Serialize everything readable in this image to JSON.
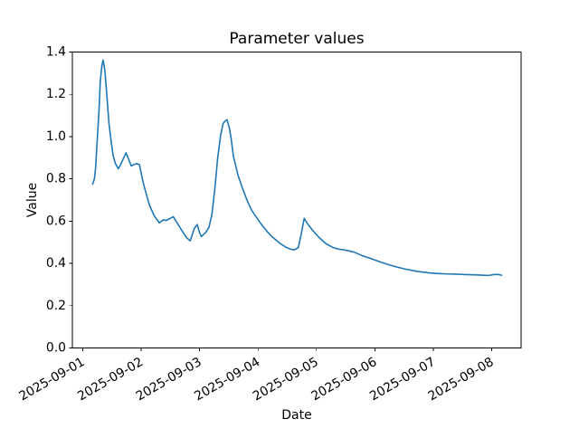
{
  "chart_data": {
    "type": "line",
    "title": "Parameter values",
    "xlabel": "Date",
    "ylabel": "Value",
    "legend": "none",
    "grid": false,
    "background_color": "#ffffff",
    "line_color": "#1f77b4",
    "frame_color": "#000000",
    "ylim": [
      0.0,
      1.4
    ],
    "ytick_values": [
      0.0,
      0.2,
      0.4,
      0.6,
      0.8,
      1.0,
      1.2,
      1.4
    ],
    "ytick_labels": [
      "0.0",
      "0.2",
      "0.4",
      "0.6",
      "0.8",
      "1.0",
      "1.2",
      "1.4"
    ],
    "x_unit": "days since 2025-09-01",
    "xlim_days": [
      -0.177,
      7.502
    ],
    "xtick_days": [
      0,
      1,
      2,
      3,
      4,
      5,
      6,
      7
    ],
    "xtick_labels": [
      "2025-09-01",
      "2025-09-02",
      "2025-09-03",
      "2025-09-04",
      "2025-09-05",
      "2025-09-06",
      "2025-09-07",
      "2025-09-08"
    ],
    "points_day_value": [
      [
        0.17,
        0.775
      ],
      [
        0.2,
        0.8
      ],
      [
        0.22,
        0.85
      ],
      [
        0.25,
        0.99
      ],
      [
        0.28,
        1.13
      ],
      [
        0.3,
        1.26
      ],
      [
        0.33,
        1.34
      ],
      [
        0.35,
        1.362
      ],
      [
        0.38,
        1.31
      ],
      [
        0.42,
        1.17
      ],
      [
        0.45,
        1.06
      ],
      [
        0.49,
        0.97
      ],
      [
        0.52,
        0.91
      ],
      [
        0.56,
        0.872
      ],
      [
        0.61,
        0.848
      ],
      [
        0.67,
        0.88
      ],
      [
        0.74,
        0.923
      ],
      [
        0.79,
        0.89
      ],
      [
        0.83,
        0.861
      ],
      [
        0.88,
        0.868
      ],
      [
        0.92,
        0.872
      ],
      [
        0.97,
        0.868
      ],
      [
        1.02,
        0.8
      ],
      [
        1.06,
        0.756
      ],
      [
        1.14,
        0.677
      ],
      [
        1.22,
        0.627
      ],
      [
        1.31,
        0.592
      ],
      [
        1.38,
        0.606
      ],
      [
        1.43,
        0.603
      ],
      [
        1.49,
        0.612
      ],
      [
        1.55,
        0.621
      ],
      [
        1.63,
        0.585
      ],
      [
        1.71,
        0.55
      ],
      [
        1.78,
        0.521
      ],
      [
        1.84,
        0.507
      ],
      [
        1.91,
        0.565
      ],
      [
        1.96,
        0.584
      ],
      [
        2.0,
        0.545
      ],
      [
        2.03,
        0.527
      ],
      [
        2.1,
        0.545
      ],
      [
        2.16,
        0.57
      ],
      [
        2.21,
        0.63
      ],
      [
        2.26,
        0.75
      ],
      [
        2.31,
        0.9
      ],
      [
        2.36,
        1.005
      ],
      [
        2.4,
        1.06
      ],
      [
        2.43,
        1.072
      ],
      [
        2.47,
        1.08
      ],
      [
        2.51,
        1.04
      ],
      [
        2.54,
        0.99
      ],
      [
        2.58,
        0.905
      ],
      [
        2.66,
        0.815
      ],
      [
        2.74,
        0.751
      ],
      [
        2.82,
        0.694
      ],
      [
        2.89,
        0.652
      ],
      [
        2.97,
        0.619
      ],
      [
        3.07,
        0.58
      ],
      [
        3.16,
        0.55
      ],
      [
        3.23,
        0.529
      ],
      [
        3.31,
        0.51
      ],
      [
        3.38,
        0.494
      ],
      [
        3.47,
        0.478
      ],
      [
        3.55,
        0.468
      ],
      [
        3.62,
        0.464
      ],
      [
        3.69,
        0.475
      ],
      [
        3.74,
        0.54
      ],
      [
        3.79,
        0.613
      ],
      [
        3.84,
        0.59
      ],
      [
        3.93,
        0.558
      ],
      [
        4.04,
        0.524
      ],
      [
        4.16,
        0.494
      ],
      [
        4.27,
        0.477
      ],
      [
        4.37,
        0.468
      ],
      [
        4.47,
        0.464
      ],
      [
        4.56,
        0.459
      ],
      [
        4.65,
        0.453
      ],
      [
        4.78,
        0.437
      ],
      [
        4.9,
        0.426
      ],
      [
        5.11,
        0.405
      ],
      [
        5.32,
        0.387
      ],
      [
        5.52,
        0.373
      ],
      [
        5.73,
        0.362
      ],
      [
        5.93,
        0.355
      ],
      [
        6.09,
        0.352
      ],
      [
        6.25,
        0.35
      ],
      [
        6.4,
        0.349
      ],
      [
        6.56,
        0.347
      ],
      [
        6.71,
        0.346
      ],
      [
        6.86,
        0.344
      ],
      [
        6.95,
        0.343
      ],
      [
        7.03,
        0.347
      ],
      [
        7.1,
        0.348
      ],
      [
        7.17,
        0.344
      ]
    ]
  }
}
